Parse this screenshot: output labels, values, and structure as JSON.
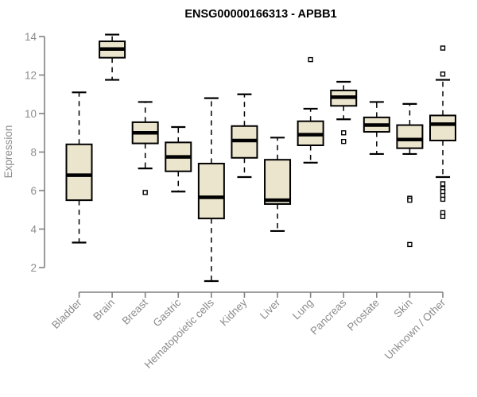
{
  "chart_data": {
    "type": "boxplot",
    "title": "ENSG00000166313 - APBB1",
    "xlabel": "",
    "ylabel": "Expression",
    "ylim": [
      2,
      14
    ],
    "yticks": [
      2,
      4,
      6,
      8,
      10,
      12,
      14
    ],
    "grid": false,
    "legend": "none",
    "categories": [
      "Bladder",
      "Brain",
      "Breast",
      "Gastric",
      "Hematopoietic cells",
      "Kidney",
      "Liver",
      "Lung",
      "Pancreas",
      "Prostate",
      "Skin",
      "Unknown / Other"
    ],
    "series": [
      {
        "category": "Bladder",
        "whisker_low": 3.3,
        "q1": 5.5,
        "median": 6.8,
        "q3": 8.4,
        "whisker_high": 11.1,
        "outliers": []
      },
      {
        "category": "Brain",
        "whisker_low": 11.75,
        "q1": 12.9,
        "median": 13.35,
        "q3": 13.75,
        "whisker_high": 14.1,
        "outliers": []
      },
      {
        "category": "Breast",
        "whisker_low": 7.15,
        "q1": 8.45,
        "median": 9.0,
        "q3": 9.55,
        "whisker_high": 10.6,
        "outliers": [
          5.9
        ]
      },
      {
        "category": "Gastric",
        "whisker_low": 5.95,
        "q1": 7.0,
        "median": 7.75,
        "q3": 8.5,
        "whisker_high": 9.3,
        "outliers": []
      },
      {
        "category": "Hematopoietic cells",
        "whisker_low": 1.3,
        "q1": 4.55,
        "median": 5.65,
        "q3": 7.4,
        "whisker_high": 10.8,
        "outliers": []
      },
      {
        "category": "Kidney",
        "whisker_low": 6.7,
        "q1": 7.7,
        "median": 8.6,
        "q3": 9.35,
        "whisker_high": 11.0,
        "outliers": []
      },
      {
        "category": "Liver",
        "whisker_low": 3.9,
        "q1": 5.3,
        "median": 5.5,
        "q3": 7.6,
        "whisker_high": 8.75,
        "outliers": []
      },
      {
        "category": "Lung",
        "whisker_low": 7.45,
        "q1": 8.35,
        "median": 8.9,
        "q3": 9.6,
        "whisker_high": 10.25,
        "outliers": [
          12.8
        ]
      },
      {
        "category": "Pancreas",
        "whisker_low": 9.7,
        "q1": 10.4,
        "median": 10.85,
        "q3": 11.2,
        "whisker_high": 11.65,
        "outliers": [
          9.0,
          8.55
        ]
      },
      {
        "category": "Prostate",
        "whisker_low": 7.9,
        "q1": 9.05,
        "median": 9.4,
        "q3": 9.8,
        "whisker_high": 10.6,
        "outliers": []
      },
      {
        "category": "Skin",
        "whisker_low": 7.9,
        "q1": 8.2,
        "median": 8.65,
        "q3": 9.4,
        "whisker_high": 10.5,
        "outliers": [
          5.6,
          5.5,
          3.2
        ]
      },
      {
        "category": "Unknown / Other",
        "whisker_low": 6.7,
        "q1": 8.6,
        "median": 9.45,
        "q3": 9.9,
        "whisker_high": 11.75,
        "outliers": [
          13.4,
          12.05,
          6.35,
          6.1,
          5.95,
          5.75,
          5.55,
          4.85,
          4.65
        ]
      }
    ],
    "colors": {
      "box_fill": "#ECE5CD",
      "box_border": "#000000",
      "median": "#000000",
      "whisker": "#000000",
      "axis": "#808080",
      "tick_label": "#8C8C8C",
      "title": "#000000",
      "background": "#FFFFFF"
    }
  }
}
